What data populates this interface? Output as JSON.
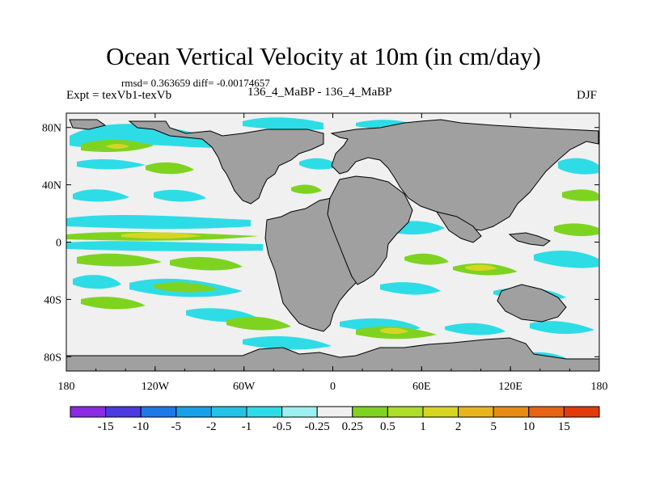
{
  "chart_data": {
    "type": "heatmap",
    "title": "Ocean Vertical Velocity at 10m (in cm/day)",
    "subtitle_left": "Expt = texVb1-texVb",
    "subtitle_center": "136_4_MaBP - 136_4_MaBP",
    "subtitle_right": "DJF",
    "stats": "rmsd= 0.363659 diff= -0.00174657",
    "x_ticks": [
      "180",
      "120W",
      "60W",
      "0",
      "60E",
      "120E",
      "180"
    ],
    "x_tick_values": [
      -180,
      -120,
      -60,
      0,
      60,
      120,
      180
    ],
    "xlim": [
      -180,
      180
    ],
    "y_ticks": [
      "80N",
      "40N",
      "0",
      "40S",
      "80S"
    ],
    "y_tick_values": [
      80,
      40,
      0,
      -40,
      -80
    ],
    "ylim": [
      -90,
      90
    ],
    "colorbar": {
      "labels": [
        "-15",
        "-10",
        "-5",
        "-2",
        "-1",
        "-0.5",
        "-0.25",
        "0.25",
        "0.5",
        "1",
        "2",
        "5",
        "10",
        "15"
      ],
      "colors": [
        "#8A2BE2",
        "#4B3BE0",
        "#1E78E6",
        "#1AA0E6",
        "#22C3E6",
        "#2EDCE6",
        "#9EEFEF",
        "#F0F0F0",
        "#7ED321",
        "#AEDD2A",
        "#D6D622",
        "#E6B41E",
        "#E68C14",
        "#E66414",
        "#E03C0C"
      ]
    },
    "land_color": "#A0A0A0",
    "missing_color": "#F0F0F0"
  }
}
